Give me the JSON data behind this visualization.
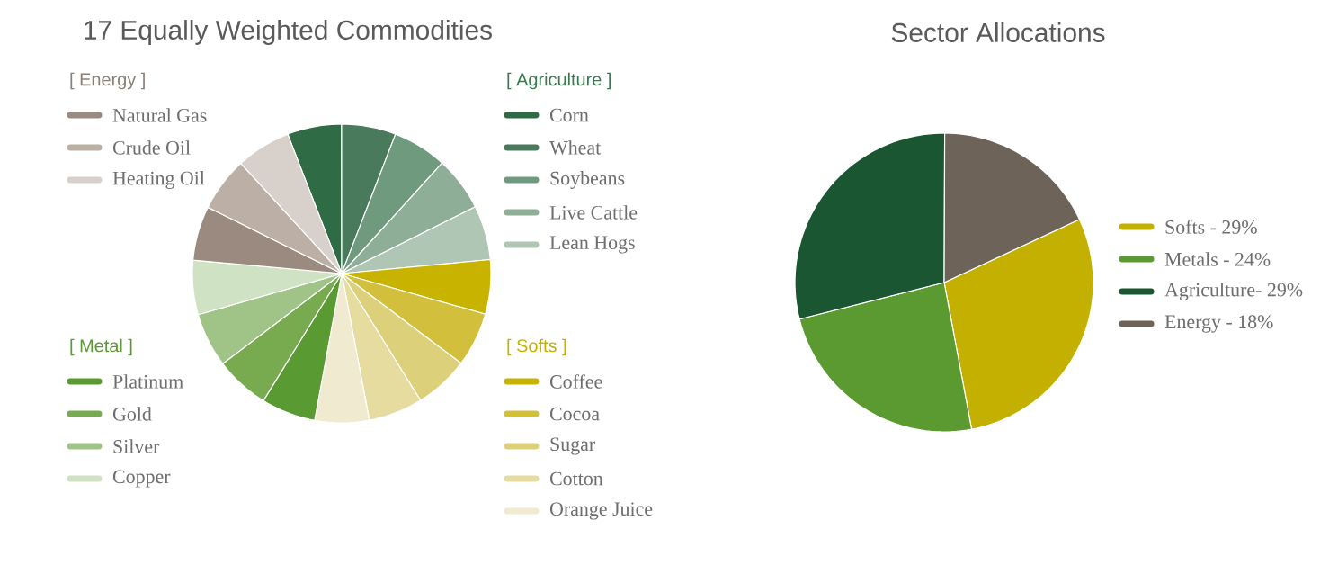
{
  "chart_data": [
    {
      "type": "pie",
      "title": "17 Equally Weighted Commodities",
      "legend": "right",
      "annotations": [
        "[ Agriculture ]",
        "[ Softs ]",
        "[ Metal ]",
        "[ Energy ]"
      ],
      "categories": [
        "Corn",
        "Wheat",
        "Soybeans",
        "Live Cattle",
        "Lean Hogs",
        "Coffee",
        "Cocoa",
        "Sugar",
        "Cotton",
        "Orange Juice",
        "Platinum",
        "Gold",
        "Silver",
        "Copper",
        "Natural Gas",
        "Crude Oil",
        "Heating Oil"
      ],
      "values": [
        5.88,
        5.88,
        5.88,
        5.88,
        5.88,
        5.88,
        5.88,
        5.88,
        5.88,
        5.88,
        5.88,
        5.88,
        5.88,
        5.88,
        5.88,
        5.88,
        5.92
      ],
      "colors": [
        "#2f6b45",
        "#4a7a5c",
        "#6f9a7e",
        "#8fae98",
        "#b0c6b4",
        "#c8b400",
        "#d2c03c",
        "#dcd07a",
        "#e6dca0",
        "#f0ead0",
        "#5a9a32",
        "#78aa50",
        "#a0c488",
        "#d0e2c4",
        "#9a8a80",
        "#bcb0a6",
        "#d8d0ca"
      ]
    },
    {
      "type": "pie",
      "title": "Sector Allocations",
      "legend": "right",
      "categories": [
        "Softs  - 29%",
        "Metals - 24%",
        "Agriculture- 29%",
        "Energy - 18%"
      ],
      "values": [
        29,
        24,
        29,
        18
      ],
      "colors": [
        "#c4b000",
        "#5a9a30",
        "#1b5632",
        "#6e6358"
      ]
    }
  ]
}
